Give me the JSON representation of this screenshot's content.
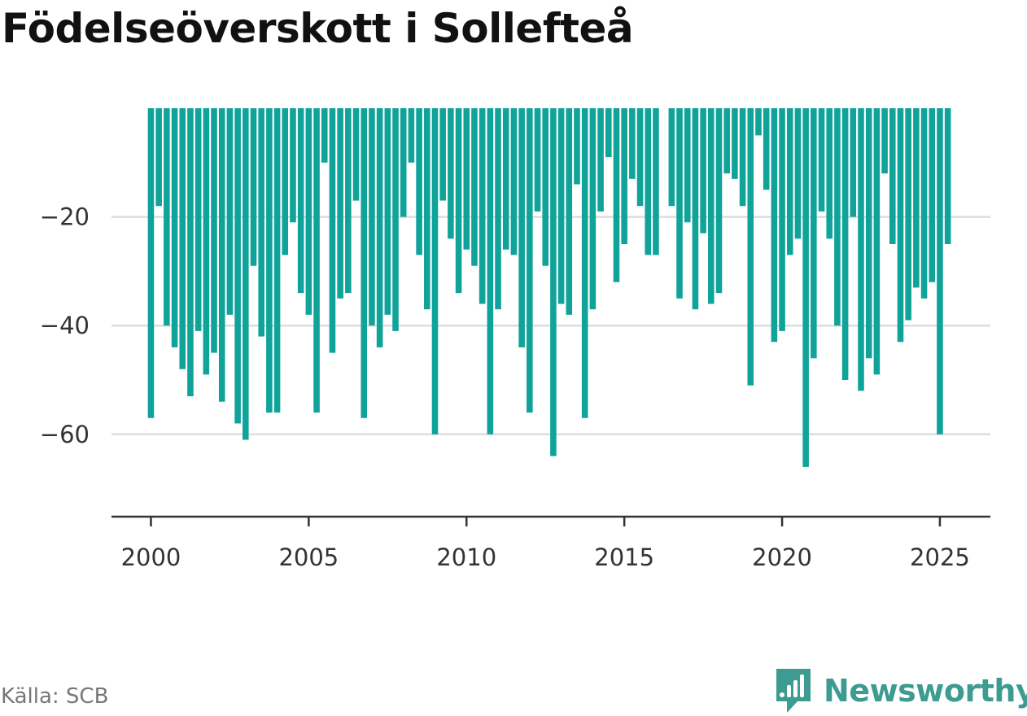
{
  "chart_data": {
    "type": "bar",
    "title": "Födelseöverskott i Sollefteå",
    "xlabel": "",
    "ylabel": "",
    "ylim": [
      -75,
      0
    ],
    "xlim": [
      1998.75,
      2026.6
    ],
    "y_ticks": [
      -20,
      -40,
      -60
    ],
    "y_tick_labels": [
      "−20",
      "−40",
      "−60"
    ],
    "x_ticks": [
      2000,
      2005,
      2010,
      2015,
      2020,
      2025
    ],
    "x_tick_labels": [
      "2000",
      "2005",
      "2010",
      "2015",
      "2020",
      "2025"
    ],
    "grid": true,
    "bar_color": "#0fa399",
    "first_period": 2000,
    "periods_per_year": 4,
    "values": [
      -57,
      -18,
      -40,
      -44,
      -48,
      -53,
      -41,
      -49,
      -45,
      -54,
      -38,
      -58,
      -61,
      -29,
      -42,
      -56,
      -56,
      -27,
      -21,
      -34,
      -38,
      -56,
      -10,
      -45,
      -35,
      -34,
      -17,
      -57,
      -40,
      -44,
      -38,
      -41,
      -20,
      -10,
      -27,
      -37,
      -60,
      -17,
      -24,
      -34,
      -26,
      -29,
      -36,
      -60,
      -37,
      -26,
      -27,
      -44,
      -56,
      -19,
      -29,
      -64,
      -36,
      -38,
      -14,
      -57,
      -37,
      -19,
      -9,
      -32,
      -25,
      -13,
      -18,
      -27,
      -27,
      0,
      -18,
      -35,
      -21,
      -37,
      -23,
      -36,
      -34,
      -12,
      -13,
      -18,
      -51,
      -5,
      -15,
      -43,
      -41,
      -27,
      -24,
      -66,
      -46,
      -19,
      -24,
      -40,
      -50,
      -20,
      -52,
      -46,
      -49,
      -12,
      -25,
      -43,
      -39,
      -33,
      -35,
      -32,
      -60,
      -25
    ]
  },
  "source": "Källa: SCB",
  "brand": {
    "name": "Newsworthy",
    "icon": "newsworthy-logo-icon",
    "color": "#3d9b91"
  }
}
